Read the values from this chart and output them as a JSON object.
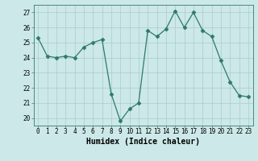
{
  "x": [
    0,
    1,
    2,
    3,
    4,
    5,
    6,
    7,
    8,
    9,
    10,
    11,
    12,
    13,
    14,
    15,
    16,
    17,
    18,
    19,
    20,
    21,
    22,
    23
  ],
  "y": [
    25.3,
    24.1,
    24.0,
    24.1,
    24.0,
    24.7,
    25.0,
    25.2,
    21.6,
    19.8,
    20.6,
    21.0,
    25.8,
    25.4,
    25.9,
    27.1,
    26.0,
    27.0,
    25.8,
    25.4,
    23.8,
    22.4,
    21.5,
    21.4
  ],
  "line_color": "#2d7a6a",
  "marker": "D",
  "marker_size": 2.5,
  "bg_color": "#cce8e8",
  "grid_color": "#aacccc",
  "xlabel": "Humidex (Indice chaleur)",
  "ylim": [
    19.5,
    27.5
  ],
  "yticks": [
    20,
    21,
    22,
    23,
    24,
    25,
    26,
    27
  ],
  "xticks": [
    0,
    1,
    2,
    3,
    4,
    5,
    6,
    7,
    8,
    9,
    10,
    11,
    12,
    13,
    14,
    15,
    16,
    17,
    18,
    19,
    20,
    21,
    22,
    23
  ],
  "tick_label_fontsize": 5.5,
  "xlabel_fontsize": 7.0
}
